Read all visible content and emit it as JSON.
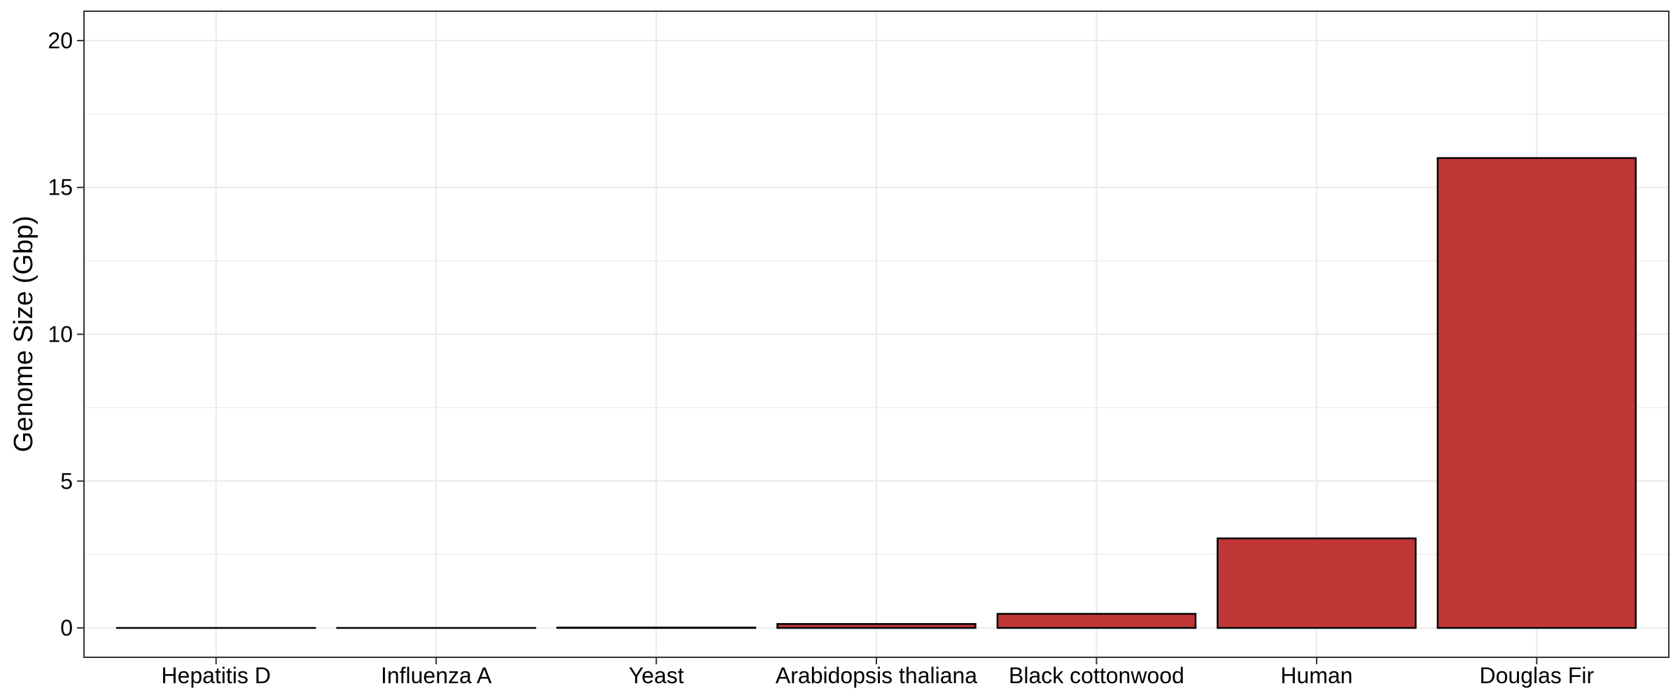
{
  "chart_data": {
    "type": "bar",
    "title": "",
    "xlabel": "",
    "ylabel": "Genome Size (Gbp)",
    "categories": [
      "Hepatitis D",
      "Influenza A",
      "Yeast",
      "Arabidopsis thaliana",
      "Black cottonwood",
      "Human",
      "Douglas Fir"
    ],
    "values": [
      1.7e-06,
      1.36e-05,
      0.012,
      0.135,
      0.48,
      3.05,
      16.0
    ],
    "ylim": [
      -1,
      21
    ],
    "yticks": [
      0,
      5,
      10,
      15,
      20
    ],
    "grid": true,
    "legend": "none",
    "colors": {
      "bar_fill": "#c13636",
      "bar_stroke": "#000000",
      "grid": "#ebebeb",
      "panel_border": "#333333",
      "background": "#ffffff"
    }
  }
}
